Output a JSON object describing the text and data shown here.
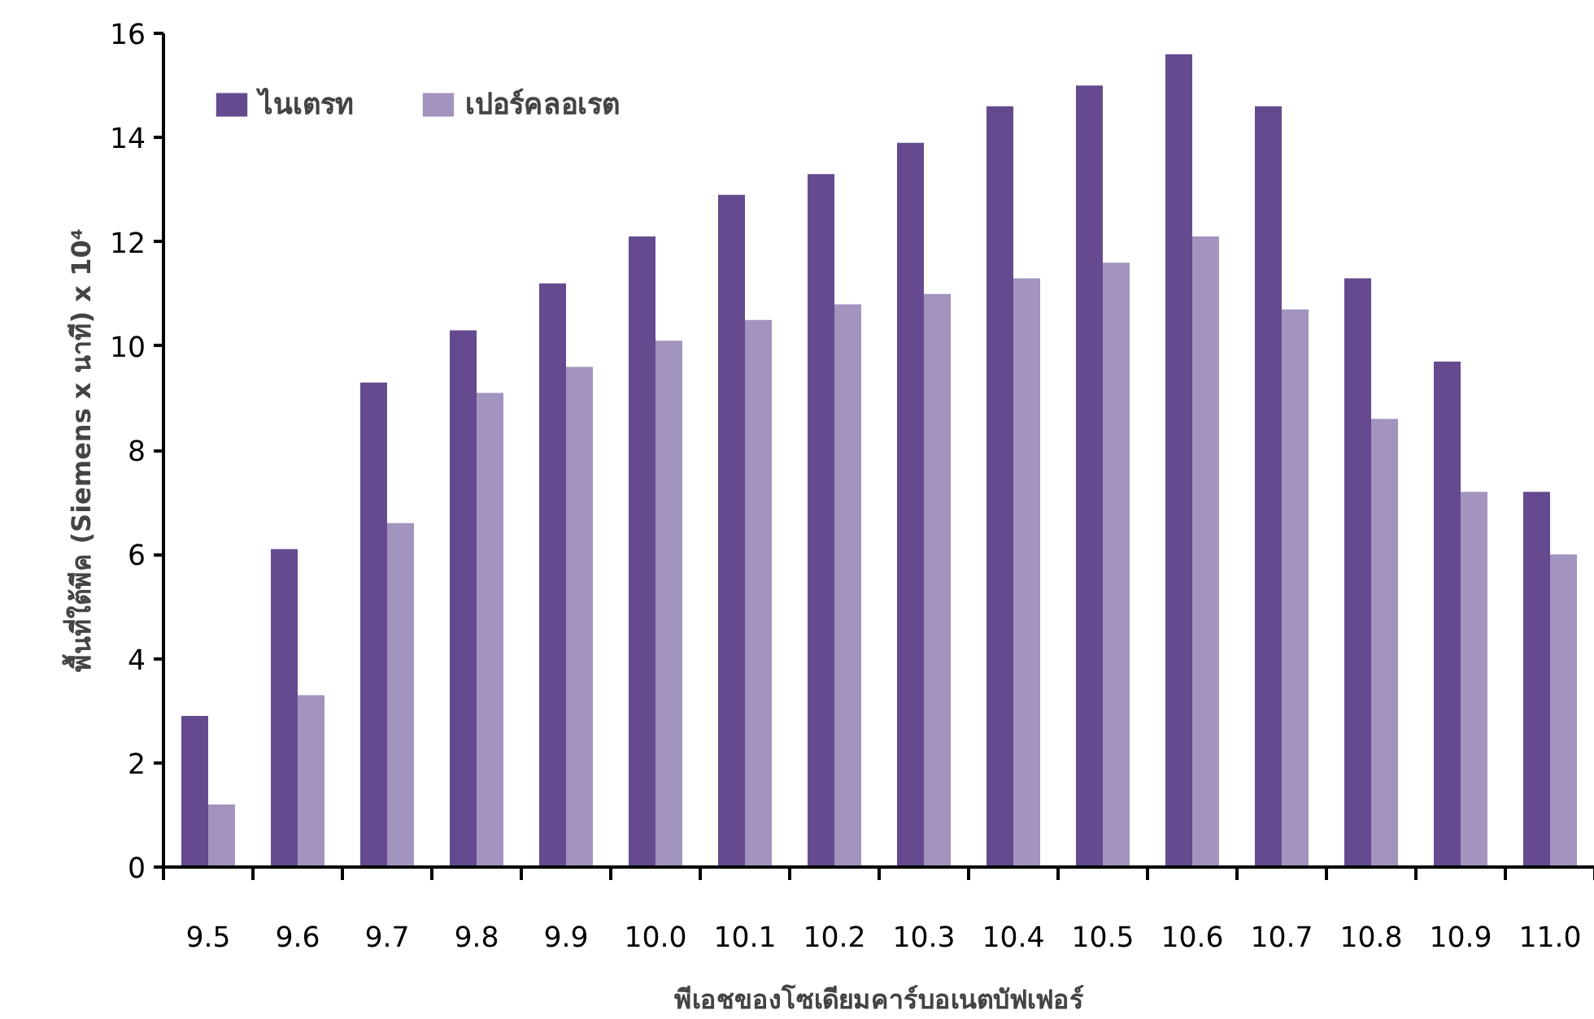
{
  "chart_data": {
    "type": "bar",
    "xlabel": "พีเอชของโซเดียมคาร์บอเนตบัฟเฟอร์",
    "ylabel": "พื้นที่ใต้พีค (Siemens x นาที) x 10⁴",
    "categories": [
      "9.5",
      "9.6",
      "9.7",
      "9.8",
      "9.9",
      "10.0",
      "10.1",
      "10.2",
      "10.3",
      "10.4",
      "10.5",
      "10.6",
      "10.7",
      "10.8",
      "10.9",
      "11.0"
    ],
    "series": [
      {
        "name": "ไนเตรท",
        "color": "#654a8f",
        "values": [
          2.9,
          6.1,
          9.3,
          10.3,
          11.2,
          12.1,
          12.9,
          13.3,
          13.9,
          14.6,
          15.0,
          15.6,
          14.6,
          11.3,
          9.7,
          7.2
        ]
      },
      {
        "name": "เปอร์คลอเรต",
        "color": "#a393bf",
        "values": [
          1.2,
          3.3,
          6.6,
          9.1,
          9.6,
          10.1,
          10.5,
          10.8,
          11.0,
          11.3,
          11.6,
          12.1,
          10.7,
          8.6,
          7.2,
          6.0
        ]
      }
    ],
    "ylim": [
      0,
      16
    ],
    "yticks": [
      0,
      2,
      4,
      6,
      8,
      10,
      12,
      14,
      16
    ],
    "grid": false,
    "legend": "top left"
  }
}
